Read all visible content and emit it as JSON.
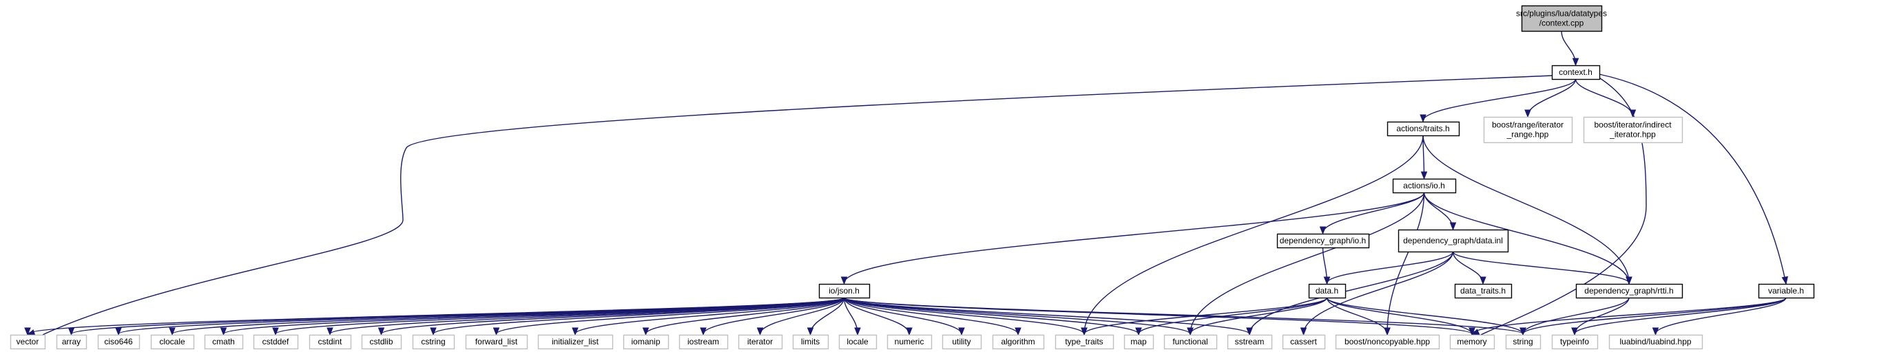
{
  "diagram": {
    "root": {
      "id": "context_cpp",
      "label": [
        "src/plugins/lua/datatypes",
        "/context.cpp"
      ]
    },
    "nodes": [
      {
        "id": "context_cpp",
        "label": [
          "src/plugins/lua/datatypes",
          "/context.cpp"
        ],
        "kind": "root"
      },
      {
        "id": "context_h",
        "label": [
          "context.h"
        ],
        "kind": "file"
      },
      {
        "id": "actions_traits_h",
        "label": [
          "actions/traits.h"
        ],
        "kind": "file"
      },
      {
        "id": "boost_range",
        "label": [
          "boost/range/iterator",
          "_range.hpp"
        ],
        "kind": "external"
      },
      {
        "id": "boost_indirect",
        "label": [
          "boost/iterator/indirect",
          "_iterator.hpp"
        ],
        "kind": "external"
      },
      {
        "id": "actions_io_h",
        "label": [
          "actions/io.h"
        ],
        "kind": "file"
      },
      {
        "id": "dg_io_h",
        "label": [
          "dependency_graph/io.h"
        ],
        "kind": "file"
      },
      {
        "id": "dg_data_inl",
        "label": [
          "dependency_graph/data.inl"
        ],
        "kind": "file"
      },
      {
        "id": "io_json_h",
        "label": [
          "io/json.h"
        ],
        "kind": "file"
      },
      {
        "id": "data_h",
        "label": [
          "data.h"
        ],
        "kind": "file"
      },
      {
        "id": "data_traits_h",
        "label": [
          "data_traits.h"
        ],
        "kind": "file"
      },
      {
        "id": "dg_rtti_h",
        "label": [
          "dependency_graph/rtti.h"
        ],
        "kind": "file"
      },
      {
        "id": "variable_h",
        "label": [
          "variable.h"
        ],
        "kind": "file"
      },
      {
        "id": "vector",
        "label": [
          "vector"
        ],
        "kind": "external"
      },
      {
        "id": "array",
        "label": [
          "array"
        ],
        "kind": "external"
      },
      {
        "id": "ciso646",
        "label": [
          "ciso646"
        ],
        "kind": "external"
      },
      {
        "id": "clocale",
        "label": [
          "clocale"
        ],
        "kind": "external"
      },
      {
        "id": "cmath",
        "label": [
          "cmath"
        ],
        "kind": "external"
      },
      {
        "id": "cstddef",
        "label": [
          "cstddef"
        ],
        "kind": "external"
      },
      {
        "id": "cstdint",
        "label": [
          "cstdint"
        ],
        "kind": "external"
      },
      {
        "id": "cstdlib",
        "label": [
          "cstdlib"
        ],
        "kind": "external"
      },
      {
        "id": "cstring",
        "label": [
          "cstring"
        ],
        "kind": "external"
      },
      {
        "id": "forward_list",
        "label": [
          "forward_list"
        ],
        "kind": "external"
      },
      {
        "id": "initializer_list",
        "label": [
          "initializer_list"
        ],
        "kind": "external"
      },
      {
        "id": "iomanip",
        "label": [
          "iomanip"
        ],
        "kind": "external"
      },
      {
        "id": "iostream",
        "label": [
          "iostream"
        ],
        "kind": "external"
      },
      {
        "id": "iterator",
        "label": [
          "iterator"
        ],
        "kind": "external"
      },
      {
        "id": "limits",
        "label": [
          "limits"
        ],
        "kind": "external"
      },
      {
        "id": "locale",
        "label": [
          "locale"
        ],
        "kind": "external"
      },
      {
        "id": "numeric",
        "label": [
          "numeric"
        ],
        "kind": "external"
      },
      {
        "id": "utility",
        "label": [
          "utility"
        ],
        "kind": "external"
      },
      {
        "id": "algorithm",
        "label": [
          "algorithm"
        ],
        "kind": "external"
      },
      {
        "id": "type_traits",
        "label": [
          "type_traits"
        ],
        "kind": "external"
      },
      {
        "id": "map",
        "label": [
          "map"
        ],
        "kind": "external"
      },
      {
        "id": "functional",
        "label": [
          "functional"
        ],
        "kind": "external"
      },
      {
        "id": "sstream",
        "label": [
          "sstream"
        ],
        "kind": "external"
      },
      {
        "id": "cassert",
        "label": [
          "cassert"
        ],
        "kind": "external"
      },
      {
        "id": "boost_noncopyable",
        "label": [
          "boost/noncopyable.hpp"
        ],
        "kind": "external"
      },
      {
        "id": "memory",
        "label": [
          "memory"
        ],
        "kind": "external"
      },
      {
        "id": "string",
        "label": [
          "string"
        ],
        "kind": "external"
      },
      {
        "id": "typeinfo",
        "label": [
          "typeinfo"
        ],
        "kind": "external"
      },
      {
        "id": "luabind",
        "label": [
          "luabind/luabind.hpp"
        ],
        "kind": "external"
      }
    ],
    "edges": [
      [
        "context_cpp",
        "context_h"
      ],
      [
        "context_h",
        "actions_traits_h"
      ],
      [
        "context_h",
        "boost_range"
      ],
      [
        "context_h",
        "boost_indirect"
      ],
      [
        "context_h",
        "variable_h"
      ],
      [
        "context_h",
        "memory"
      ],
      [
        "context_h",
        "vector"
      ],
      [
        "actions_traits_h",
        "actions_io_h"
      ],
      [
        "actions_traits_h",
        "dg_rtti_h"
      ],
      [
        "actions_traits_h",
        "type_traits"
      ],
      [
        "actions_io_h",
        "io_json_h"
      ],
      [
        "actions_io_h",
        "dg_io_h"
      ],
      [
        "actions_io_h",
        "dg_data_inl"
      ],
      [
        "actions_io_h",
        "dg_rtti_h"
      ],
      [
        "actions_io_h",
        "functional"
      ],
      [
        "actions_io_h",
        "boost_noncopyable"
      ],
      [
        "dg_io_h",
        "data_h"
      ],
      [
        "dg_data_inl",
        "data_h"
      ],
      [
        "dg_data_inl",
        "data_traits_h"
      ],
      [
        "dg_data_inl",
        "dg_rtti_h"
      ],
      [
        "dg_data_inl",
        "sstream"
      ],
      [
        "dg_data_inl",
        "cassert"
      ],
      [
        "data_h",
        "type_traits"
      ],
      [
        "data_h",
        "map"
      ],
      [
        "data_h",
        "functional"
      ],
      [
        "data_h",
        "boost_noncopyable"
      ],
      [
        "data_h",
        "memory"
      ],
      [
        "data_h",
        "string"
      ],
      [
        "dg_rtti_h",
        "string"
      ],
      [
        "dg_rtti_h",
        "typeinfo"
      ],
      [
        "variable_h",
        "memory"
      ],
      [
        "variable_h",
        "string"
      ],
      [
        "variable_h",
        "typeinfo"
      ],
      [
        "variable_h",
        "luabind"
      ],
      [
        "io_json_h",
        "vector"
      ],
      [
        "io_json_h",
        "array"
      ],
      [
        "io_json_h",
        "ciso646"
      ],
      [
        "io_json_h",
        "clocale"
      ],
      [
        "io_json_h",
        "cmath"
      ],
      [
        "io_json_h",
        "cstddef"
      ],
      [
        "io_json_h",
        "cstdint"
      ],
      [
        "io_json_h",
        "cstdlib"
      ],
      [
        "io_json_h",
        "cstring"
      ],
      [
        "io_json_h",
        "forward_list"
      ],
      [
        "io_json_h",
        "initializer_list"
      ],
      [
        "io_json_h",
        "iomanip"
      ],
      [
        "io_json_h",
        "iostream"
      ],
      [
        "io_json_h",
        "iterator"
      ],
      [
        "io_json_h",
        "limits"
      ],
      [
        "io_json_h",
        "locale"
      ],
      [
        "io_json_h",
        "numeric"
      ],
      [
        "io_json_h",
        "utility"
      ],
      [
        "io_json_h",
        "algorithm"
      ],
      [
        "io_json_h",
        "type_traits"
      ],
      [
        "io_json_h",
        "map"
      ],
      [
        "io_json_h",
        "functional"
      ],
      [
        "io_json_h",
        "sstream"
      ],
      [
        "io_json_h",
        "memory"
      ],
      [
        "io_json_h",
        "string"
      ]
    ],
    "colors": {
      "edge": "#191970",
      "root_fill": "#bfbfbf",
      "root_stroke": "#000000",
      "file_fill": "#ffffff",
      "file_stroke": "#000000",
      "external_fill": "#ffffff",
      "external_stroke": "#bfbfbf"
    }
  }
}
